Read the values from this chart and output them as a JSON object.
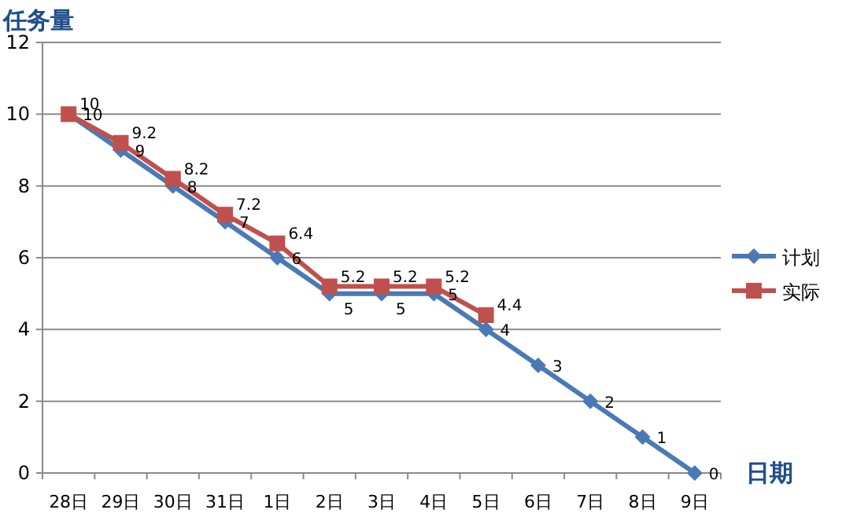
{
  "chart_data": {
    "type": "line",
    "ylabel": "任务量",
    "xlabel": "日期",
    "categories": [
      "28日",
      "29日",
      "30日",
      "31日",
      "1日",
      "2日",
      "3日",
      "4日",
      "5日",
      "6日",
      "7日",
      "8日",
      "9日"
    ],
    "series": [
      {
        "name": "计划",
        "color": "#4a7ab5",
        "marker": "diamond",
        "values": [
          10,
          9,
          8,
          7,
          6,
          5,
          5,
          5,
          4,
          3,
          2,
          1,
          0
        ]
      },
      {
        "name": "实际",
        "color": "#c0504d",
        "marker": "square",
        "values": [
          10,
          9.2,
          8.2,
          7.2,
          6.4,
          5.2,
          5.2,
          5.2,
          4.4,
          null,
          null,
          null,
          null
        ]
      }
    ],
    "ylim": [
      0,
      12
    ],
    "yticks": [
      0,
      2,
      4,
      6,
      8,
      10,
      12
    ],
    "grid": "y",
    "legend": "right",
    "data_labels": true
  }
}
